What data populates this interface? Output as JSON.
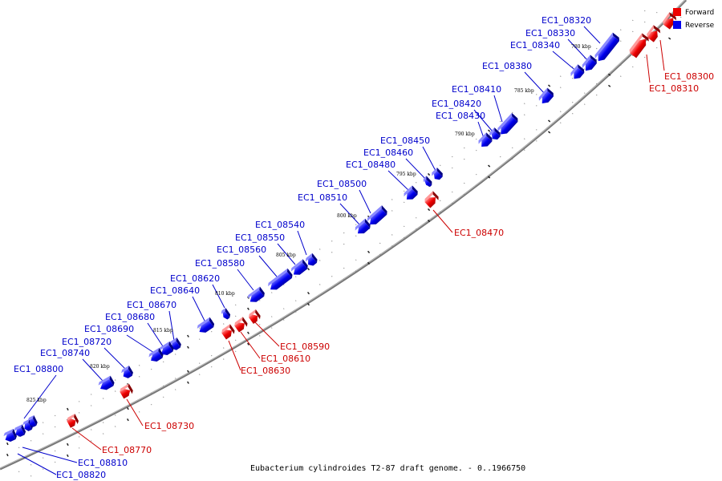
{
  "caption": "Eubacterium cylindroides T2-87 draft genome. - 0..1966750",
  "colors": {
    "forward": "#ee0000",
    "reverse": "#0000ee",
    "backbone": "#666666"
  },
  "legend": {
    "forward": "Forward",
    "reverse": "Reverse"
  },
  "ticks": [
    "780 kbp",
    "785 kbp",
    "790 kbp",
    "795 kbp",
    "800 kbp",
    "805 kbp",
    "810 kbp",
    "815 kbp",
    "820 kbp",
    "825 kbp"
  ],
  "reverse_genes": [
    "EC1_08320",
    "EC1_08330",
    "EC1_08340",
    "EC1_08380",
    "EC1_08410",
    "EC1_08420",
    "EC1_08430",
    "EC1_08450",
    "EC1_08460",
    "EC1_08480",
    "EC1_08500",
    "EC1_08510",
    "EC1_08540",
    "EC1_08550",
    "EC1_08560",
    "EC1_08580",
    "EC1_08620",
    "EC1_08640",
    "EC1_08670",
    "EC1_08680",
    "EC1_08690",
    "EC1_08720",
    "EC1_08740",
    "EC1_08800",
    "EC1_08810",
    "EC1_08820"
  ],
  "forward_genes": [
    "EC1_08300",
    "EC1_08310",
    "EC1_08470",
    "EC1_08590",
    "EC1_08610",
    "EC1_08630",
    "EC1_08730",
    "EC1_08770"
  ]
}
